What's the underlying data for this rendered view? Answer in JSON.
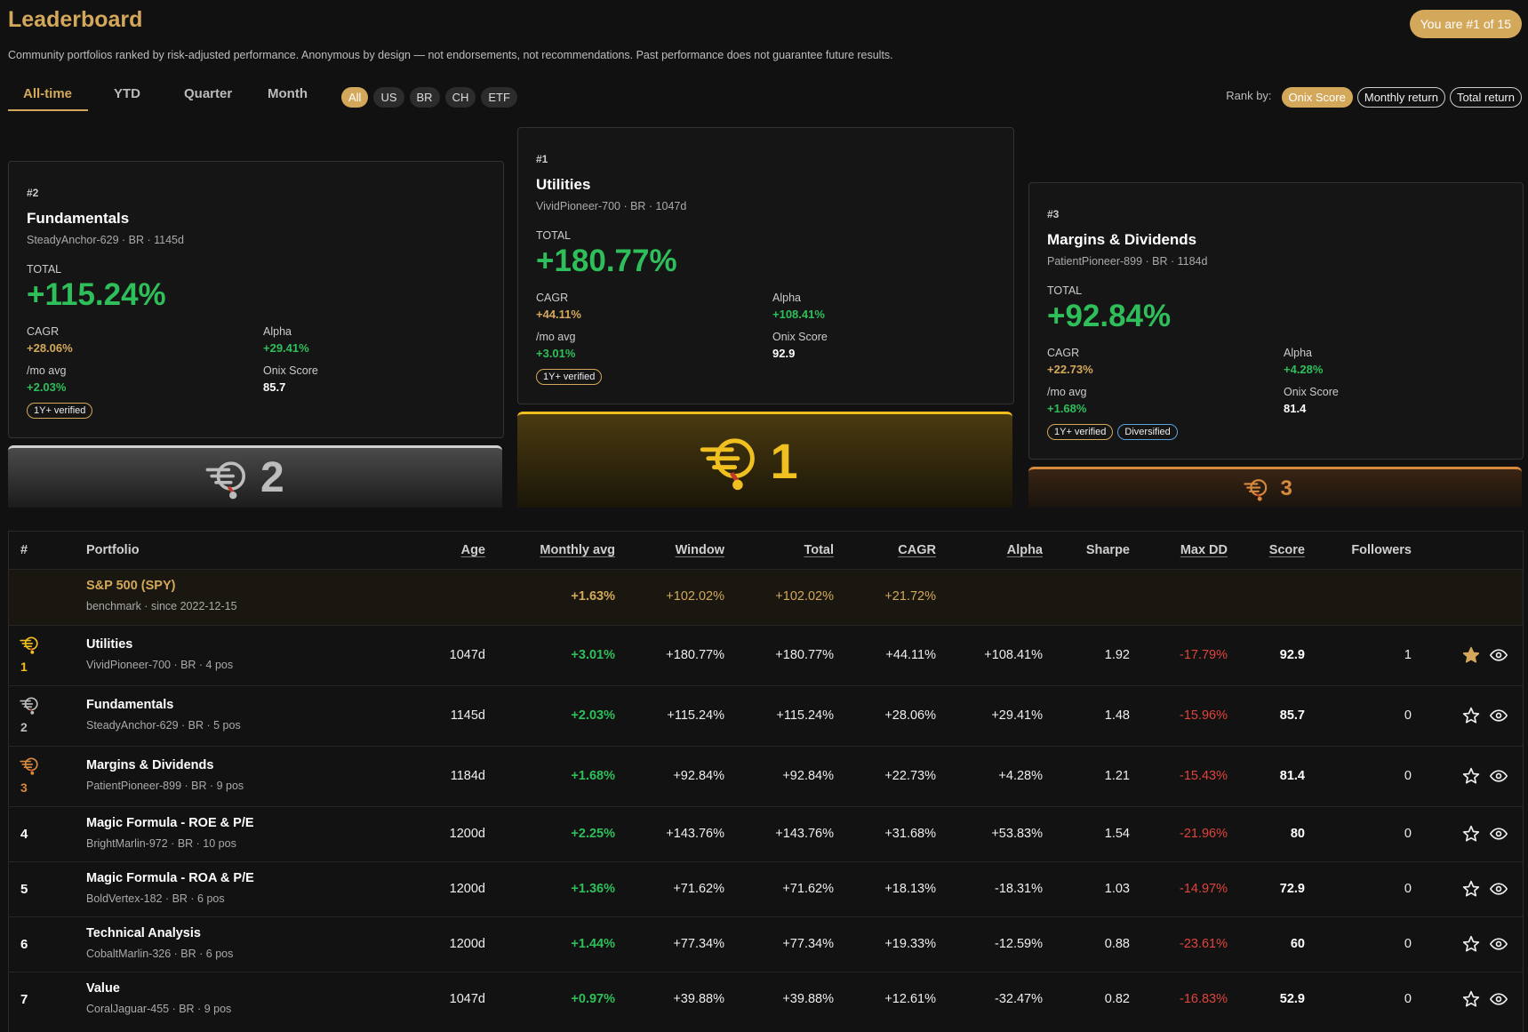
{
  "header": {
    "title": "Leaderboard",
    "subtitle": "Community portfolios ranked by risk-adjusted performance. Anonymous by design — not endorsements, not recommendations. Past performance does not guarantee future results.",
    "badge": "You are #1 of 15"
  },
  "tabs": [
    "All-time",
    "YTD",
    "Quarter",
    "Month"
  ],
  "regions": [
    "All",
    "US",
    "BR",
    "CH",
    "ETF"
  ],
  "rank_by": {
    "label": "Rank by:",
    "options": [
      "Onix Score",
      "Monthly return",
      "Total return"
    ]
  },
  "podium": [
    {
      "rank": "#2",
      "name": "Fundamentals",
      "meta": "SteadyAnchor-629 · BR · 1145d",
      "total_label": "TOTAL",
      "total": "+115.24%",
      "stats": [
        {
          "label": "CAGR",
          "value": "+28.06%"
        },
        {
          "label": "Alpha",
          "value": "+29.41%"
        },
        {
          "label": "/mo avg",
          "value": "+2.03%"
        },
        {
          "label": "Onix Score",
          "value": "85.7"
        }
      ],
      "badges": [
        "1Y+ verified"
      ],
      "place": "2"
    },
    {
      "rank": "#1",
      "name": "Utilities",
      "meta": "VividPioneer-700 · BR · 1047d",
      "total_label": "TOTAL",
      "total": "+180.77%",
      "stats": [
        {
          "label": "CAGR",
          "value": "+44.11%"
        },
        {
          "label": "Alpha",
          "value": "+108.41%"
        },
        {
          "label": "/mo avg",
          "value": "+3.01%"
        },
        {
          "label": "Onix Score",
          "value": "92.9"
        }
      ],
      "badges": [
        "1Y+ verified"
      ],
      "place": "1"
    },
    {
      "rank": "#3",
      "name": "Margins & Dividends",
      "meta": "PatientPioneer-899 · BR · 1184d",
      "total_label": "TOTAL",
      "total": "+92.84%",
      "stats": [
        {
          "label": "CAGR",
          "value": "+22.73%"
        },
        {
          "label": "Alpha",
          "value": "+4.28%"
        },
        {
          "label": "/mo avg",
          "value": "+1.68%"
        },
        {
          "label": "Onix Score",
          "value": "81.4"
        }
      ],
      "badges": [
        "1Y+ verified",
        "Diversified"
      ],
      "place": "3"
    }
  ],
  "table": {
    "columns": [
      "#",
      "Portfolio",
      "Age",
      "Monthly avg",
      "Window",
      "Total",
      "CAGR",
      "Alpha",
      "Sharpe",
      "Max DD",
      "Score",
      "Followers"
    ],
    "benchmark": {
      "name": "S&P 500 (SPY)",
      "meta": "benchmark · since 2022-12-15",
      "monthly_avg": "+1.63%",
      "window": "+102.02%",
      "total": "+102.02%",
      "cagr": "+21.72%"
    },
    "rows": [
      {
        "rank": "1",
        "name": "Utilities",
        "meta": "VividPioneer-700 · BR · 4 pos",
        "age": "1047d",
        "monthly_avg": "+3.01%",
        "window": "+180.77%",
        "total": "+180.77%",
        "cagr": "+44.11%",
        "alpha": "+108.41%",
        "sharpe": "1.92",
        "max_dd": "-17.79%",
        "score": "92.9",
        "followers": "1"
      },
      {
        "rank": "2",
        "name": "Fundamentals",
        "meta": "SteadyAnchor-629 · BR · 5 pos",
        "age": "1145d",
        "monthly_avg": "+2.03%",
        "window": "+115.24%",
        "total": "+115.24%",
        "cagr": "+28.06%",
        "alpha": "+29.41%",
        "sharpe": "1.48",
        "max_dd": "-15.96%",
        "score": "85.7",
        "followers": "0"
      },
      {
        "rank": "3",
        "name": "Margins & Dividends",
        "meta": "PatientPioneer-899 · BR · 9 pos",
        "age": "1184d",
        "monthly_avg": "+1.68%",
        "window": "+92.84%",
        "total": "+92.84%",
        "cagr": "+22.73%",
        "alpha": "+4.28%",
        "sharpe": "1.21",
        "max_dd": "-15.43%",
        "score": "81.4",
        "followers": "0"
      },
      {
        "rank": "4",
        "name": "Magic Formula - ROE & P/E",
        "meta": "BrightMarlin-972 · BR · 10 pos",
        "age": "1200d",
        "monthly_avg": "+2.25%",
        "window": "+143.76%",
        "total": "+143.76%",
        "cagr": "+31.68%",
        "alpha": "+53.83%",
        "sharpe": "1.54",
        "max_dd": "-21.96%",
        "score": "80",
        "followers": "0"
      },
      {
        "rank": "5",
        "name": "Magic Formula - ROA & P/E",
        "meta": "BoldVertex-182 · BR · 6 pos",
        "age": "1200d",
        "monthly_avg": "+1.36%",
        "window": "+71.62%",
        "total": "+71.62%",
        "cagr": "+18.13%",
        "alpha": "-18.31%",
        "sharpe": "1.03",
        "max_dd": "-14.97%",
        "score": "72.9",
        "followers": "0"
      },
      {
        "rank": "6",
        "name": "Technical Analysis",
        "meta": "CobaltMarlin-326 · BR · 6 pos",
        "age": "1200d",
        "monthly_avg": "+1.44%",
        "window": "+77.34%",
        "total": "+77.34%",
        "cagr": "+19.33%",
        "alpha": "-12.59%",
        "sharpe": "0.88",
        "max_dd": "-23.61%",
        "score": "60",
        "followers": "0"
      },
      {
        "rank": "7",
        "name": "Value",
        "meta": "CoralJaguar-455 · BR · 9 pos",
        "age": "1047d",
        "monthly_avg": "+0.97%",
        "window": "+39.88%",
        "total": "+39.88%",
        "cagr": "+12.61%",
        "alpha": "-32.47%",
        "sharpe": "0.82",
        "max_dd": "-16.83%",
        "score": "52.9",
        "followers": "0"
      }
    ]
  }
}
